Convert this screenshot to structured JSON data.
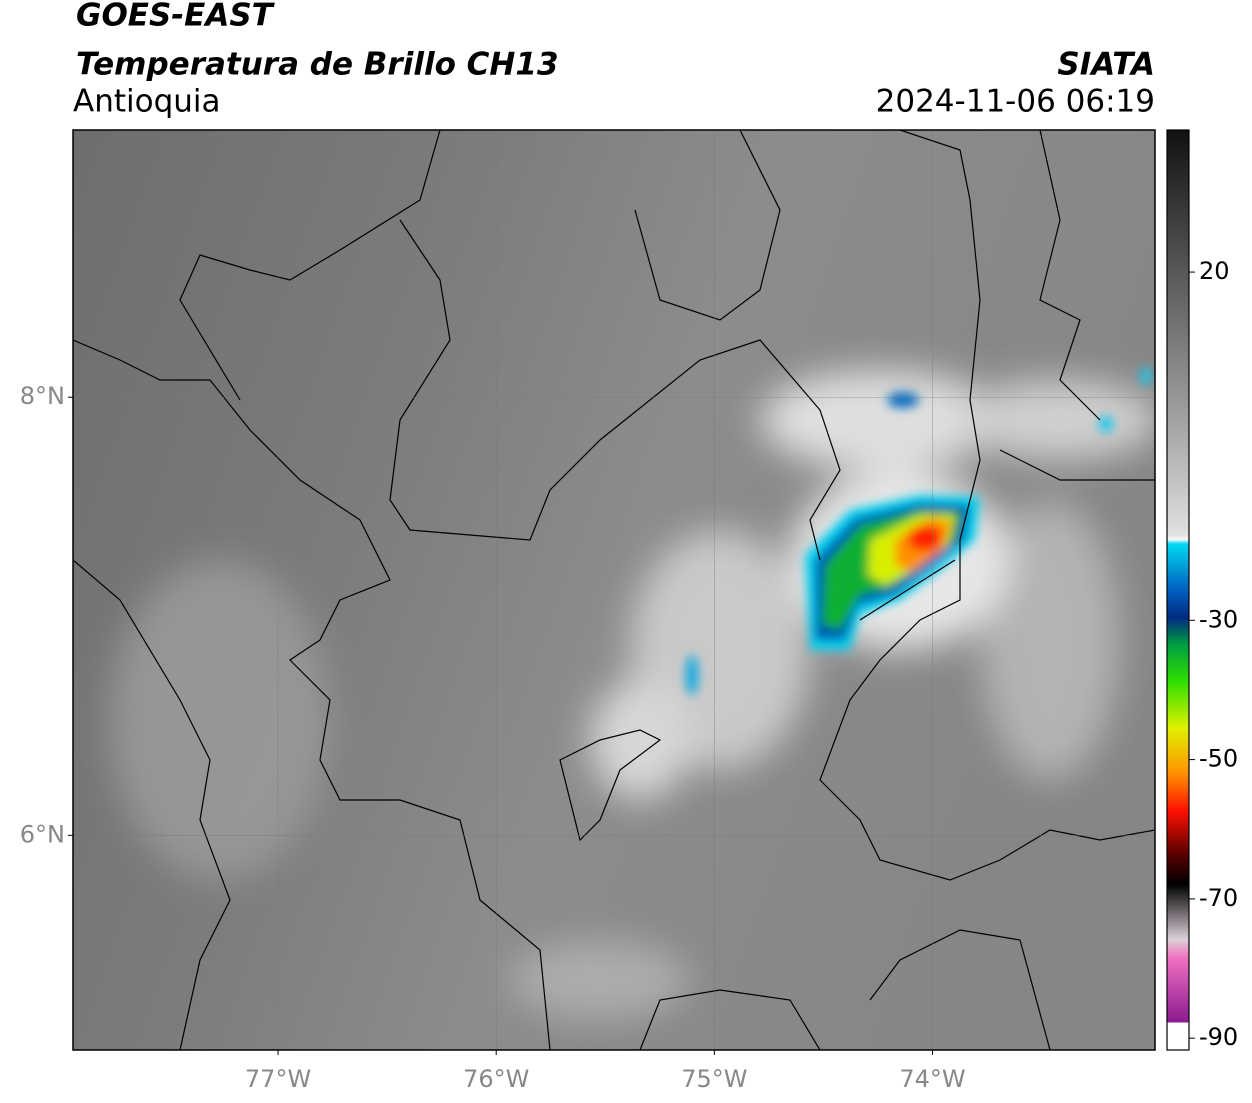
{
  "header": {
    "title": "GOES-EAST",
    "subtitle": "Temperatura de Brillo CH13",
    "region": "Antioquia",
    "source": "SIATA",
    "datetime": "2024-11-06 06:19"
  },
  "map": {
    "lonlim": [
      -77.94,
      -72.98
    ],
    "latlim": [
      5.02,
      9.22
    ],
    "lon_ticks": [
      {
        "value": -77,
        "label": "77°W"
      },
      {
        "value": -76,
        "label": "76°W"
      },
      {
        "value": -75,
        "label": "75°W"
      },
      {
        "value": -74,
        "label": "74°W"
      }
    ],
    "lat_ticks": [
      {
        "value": 8,
        "label": "8°N"
      },
      {
        "value": 6,
        "label": "6°N"
      }
    ]
  },
  "colorbar": {
    "lim": [
      -91.7,
      40.4
    ],
    "ticks": [
      20,
      -30,
      -50,
      -70,
      -90
    ]
  }
}
